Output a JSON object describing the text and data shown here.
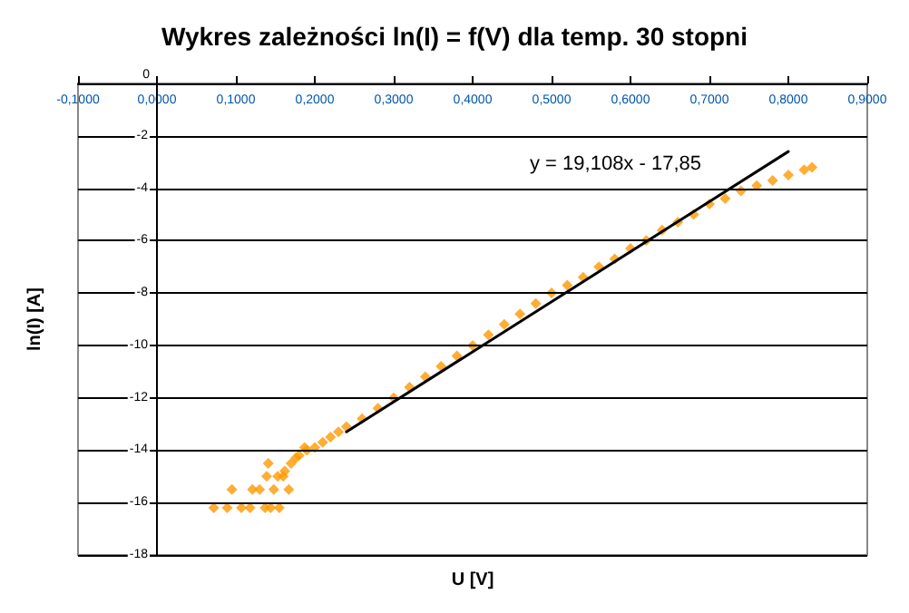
{
  "chart_data": {
    "type": "scatter",
    "title": "Wykres zależności ln(I) = f(V) dla temp. 30 stopni",
    "xlabel": "U [V]",
    "ylabel": "ln(I) [A]",
    "annotations": [
      "y = 19,108x - 17,85"
    ],
    "xlim": [
      -0.1,
      0.9
    ],
    "xticks": [
      {
        "value": -0.1,
        "label": "-0,1000"
      },
      {
        "value": 0,
        "label": "0,0000"
      },
      {
        "value": 0.1,
        "label": "0,1000"
      },
      {
        "value": 0.2,
        "label": "0,2000"
      },
      {
        "value": 0.3,
        "label": "0,3000"
      },
      {
        "value": 0.4,
        "label": "0,4000"
      },
      {
        "value": 0.5,
        "label": "0,5000"
      },
      {
        "value": 0.6,
        "label": "0,6000"
      },
      {
        "value": 0.7,
        "label": "0,7000"
      },
      {
        "value": 0.8,
        "label": "0,8000"
      },
      {
        "value": 0.9,
        "label": "0,9000"
      }
    ],
    "ylim": [
      -18,
      0
    ],
    "yticks": [
      0,
      -2,
      -4,
      -6,
      -8,
      -10,
      -12,
      -14,
      -16,
      -18
    ],
    "grid": "y",
    "marker": "diamond",
    "series": [
      {
        "color": "#ff9900",
        "x": [
          0.072,
          0.089,
          0.107,
          0.118,
          0.137,
          0.144,
          0.155,
          0.095,
          0.121,
          0.13,
          0.148,
          0.167,
          0.139,
          0.153,
          0.16,
          0.141,
          0.162,
          0.17,
          0.176,
          0.18,
          0.187,
          0.19,
          0.2,
          0.21,
          0.22,
          0.23,
          0.24,
          0.26,
          0.28,
          0.3,
          0.32,
          0.34,
          0.36,
          0.38,
          0.4,
          0.42,
          0.44,
          0.46,
          0.48,
          0.5,
          0.52,
          0.54,
          0.56,
          0.58,
          0.6,
          0.62,
          0.64,
          0.66,
          0.68,
          0.7,
          0.72,
          0.74,
          0.76,
          0.78,
          0.8,
          0.82,
          0.83
        ],
        "values": [
          -16.2,
          -16.2,
          -16.2,
          -16.2,
          -16.2,
          -16.2,
          -16.2,
          -15.5,
          -15.5,
          -15.5,
          -15.5,
          -15.5,
          -15.0,
          -15.0,
          -15.0,
          -14.5,
          -14.8,
          -14.5,
          -14.3,
          -14.2,
          -13.9,
          -14.0,
          -13.9,
          -13.7,
          -13.5,
          -13.3,
          -13.1,
          -12.8,
          -12.4,
          -12.0,
          -11.6,
          -11.2,
          -10.8,
          -10.4,
          -10.0,
          -9.6,
          -9.2,
          -8.8,
          -8.4,
          -8.0,
          -7.7,
          -7.4,
          -7.0,
          -6.7,
          -6.3,
          -6.0,
          -5.6,
          -5.3,
          -5.0,
          -4.6,
          -4.4,
          -4.1,
          -3.9,
          -3.7,
          -3.5,
          -3.3,
          -3.2
        ]
      },
      {
        "type": "line",
        "color": "#000000",
        "marker": "none",
        "x": [
          0.24,
          0.8
        ],
        "values": [
          -13.3,
          -2.6
        ]
      }
    ]
  }
}
